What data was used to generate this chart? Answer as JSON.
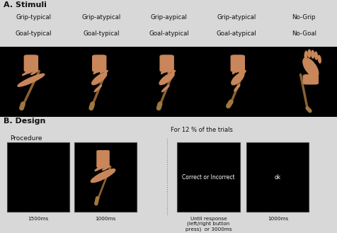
{
  "section_a_label": "A. Stimuli",
  "section_b_label": "B. Design",
  "stimuli_labels": [
    [
      "Grip-typical",
      "Goal-typical"
    ],
    [
      "Grip-atypical",
      "Goal-typical"
    ],
    [
      "Grip-aypical",
      "Goal-atypical"
    ],
    [
      "Grip-atypical",
      "Goal-atypical"
    ],
    [
      "No-Grip",
      "No-Goal"
    ]
  ],
  "procedure_label": "Procedure",
  "for_label": "For 12 % of the trials",
  "procedure_times": [
    "1500ms",
    "1000ms",
    "Until response\n(left/right button\npress)  or 3000ms",
    "1000ms"
  ],
  "box_texts": [
    "",
    "",
    "Correct or Incorrect",
    "ok"
  ],
  "bg_color": "#000000",
  "fig_bg": "#d8d8d8",
  "text_color": "#ffffff",
  "label_color": "#111111",
  "skin_color": "#c8865a",
  "spatula_color": "#8B6030",
  "spatula_wide": "#a07840"
}
